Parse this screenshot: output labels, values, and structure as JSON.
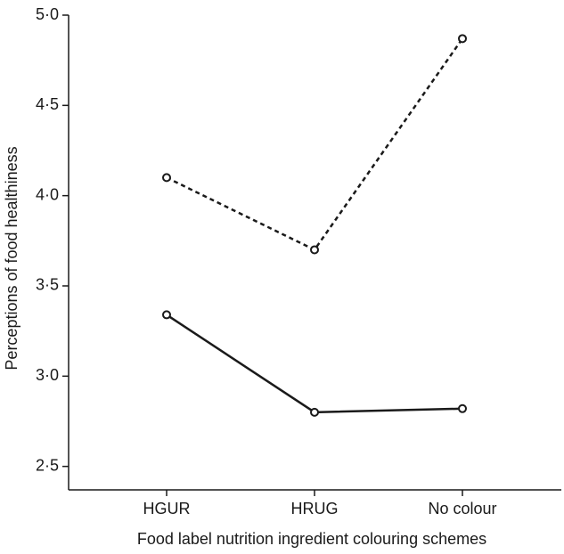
{
  "chart_data": {
    "type": "line",
    "xlabel": "Food label nutrition ingredient colouring schemes",
    "ylabel": "Perceptions of food healthiness",
    "categories": [
      "HGUR",
      "HRUG",
      "No colour"
    ],
    "series": [
      {
        "color": "#1a1a1a",
        "style": "dashed",
        "values": [
          4.1,
          3.7,
          4.87
        ]
      },
      {
        "color": "#1a1a1a",
        "style": "solid",
        "values": [
          3.34,
          2.8,
          2.82
        ]
      }
    ],
    "ylim": [
      2.37,
      5.0
    ],
    "yticks": [
      {
        "value": 2.5,
        "label": "2·5"
      },
      {
        "value": 3.0,
        "label": "3·0"
      },
      {
        "value": 3.5,
        "label": "3·5"
      },
      {
        "value": 4.0,
        "label": "4·0"
      },
      {
        "value": 4.5,
        "label": "4·5"
      },
      {
        "value": 5.0,
        "label": "5·0"
      }
    ]
  }
}
